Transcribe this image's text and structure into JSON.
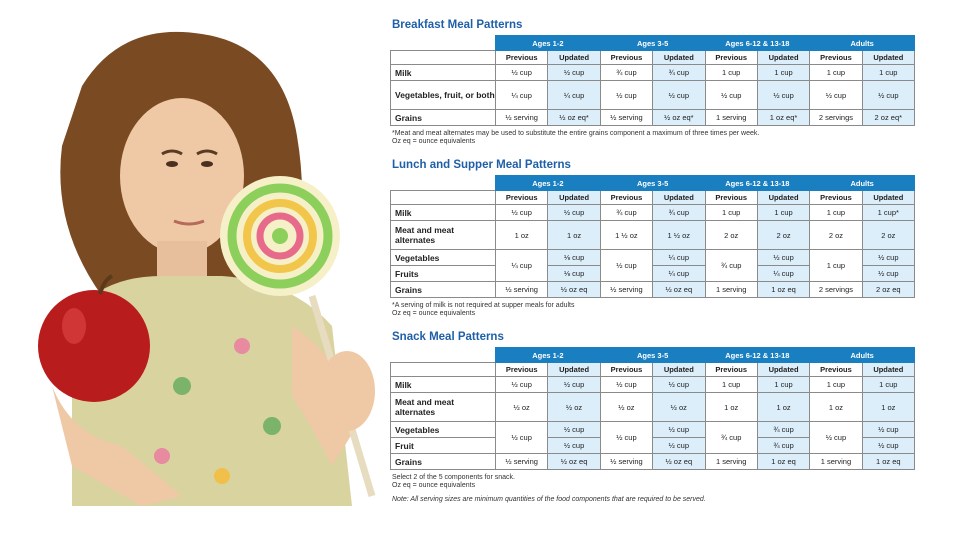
{
  "age_groups": [
    "Ages 1-2",
    "Ages 3-5",
    "Ages 6-12 & 13-18",
    "Adults"
  ],
  "sub": {
    "prev": "Previous",
    "upd": "Updated"
  },
  "breakfast": {
    "title": "Breakfast Meal Patterns",
    "rows": [
      {
        "label": "Milk",
        "vals": [
          "½ cup",
          "½ cup",
          "¾ cup",
          "¾ cup",
          "1 cup",
          "1 cup",
          "1 cup",
          "1 cup"
        ]
      },
      {
        "label": "Vegetables, fruit, or both",
        "vals": [
          "¼ cup",
          "¼ cup",
          "½ cup",
          "½ cup",
          "½ cup",
          "½ cup",
          "½ cup",
          "½ cup"
        ]
      },
      {
        "label": "Grains",
        "vals": [
          "½ serving",
          "½ oz eq*",
          "½ serving",
          "½ oz eq*",
          "1 serving",
          "1 oz eq*",
          "2 servings",
          "2 oz eq*"
        ]
      }
    ],
    "note1": "*Meat and meat alternates may be used to substitute the entire grains component a maximum of three times per week.",
    "note2": "Oz eq = ounce equivalents"
  },
  "lunch": {
    "title": "Lunch and Supper Meal Patterns",
    "milk": [
      "½ cup",
      "½ cup",
      "¾ cup",
      "¾ cup",
      "1 cup",
      "1 cup",
      "1 cup",
      "1 cup*"
    ],
    "meat_label": "Meat and meat alternates",
    "meat": [
      "1 oz",
      "1 oz",
      "1 ½ oz",
      "1 ½ oz",
      "2 oz",
      "2 oz",
      "2 oz",
      "2 oz"
    ],
    "veg_label": "Vegetables",
    "fruit_label": "Fruits",
    "vf_prev": [
      "¼ cup",
      "½ cup",
      "¾ cup",
      "1 cup"
    ],
    "veg_upd": [
      "⅛ cup",
      "¼ cup",
      "½ cup",
      "½ cup"
    ],
    "fruit_upd": [
      "⅛ cup",
      "¼ cup",
      "¼ cup",
      "½ cup"
    ],
    "grains_label": "Grains",
    "grains": [
      "½ serving",
      "½ oz eq",
      "½ serving",
      "½ oz eq",
      "1 serving",
      "1 oz eq",
      "2 servings",
      "2 oz eq"
    ],
    "note1": "*A serving of milk is not required at supper meals for adults",
    "note2": "Oz eq = ounce equivalents"
  },
  "snack": {
    "title": "Snack Meal Patterns",
    "milk": [
      "½ cup",
      "½ cup",
      "½ cup",
      "½ cup",
      "1 cup",
      "1 cup",
      "1 cup",
      "1 cup"
    ],
    "meat_label": "Meat and meat alternates",
    "meat": [
      "½ oz",
      "½ oz",
      "½ oz",
      "½ oz",
      "1 oz",
      "1 oz",
      "1 oz",
      "1 oz"
    ],
    "veg_label": "Vegetables",
    "fruit_label": "Fruit",
    "vf_prev": [
      "½ cup",
      "½ cup",
      "¾ cup",
      "½ cup"
    ],
    "veg_upd": [
      "½ cup",
      "½ cup",
      "¾ cup",
      "½ cup"
    ],
    "fruit_upd": [
      "½ cup",
      "½ cup",
      "¾ cup",
      "½ cup"
    ],
    "grains_label": "Grains",
    "grains": [
      "½ serving",
      "½ oz eq",
      "½ serving",
      "½ oz eq",
      "1 serving",
      "1 oz eq",
      "1 serving",
      "1 oz eq"
    ],
    "note1": "Select 2 of the 5 components for snack.",
    "note2": "Oz eq = ounce equivalents"
  },
  "footnote": "Note: All serving sizes are minimum quantities of the food components that are required to be served.",
  "colors": {
    "header": "#1a7fc1",
    "title": "#1f5fa8",
    "updated_cell": "#dceefa"
  },
  "photo": {
    "subject": "girl-holding-apple-and-lollipop"
  }
}
